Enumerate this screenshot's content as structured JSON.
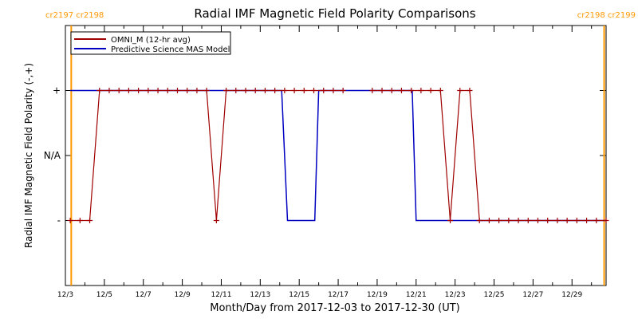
{
  "chart_data": {
    "type": "line",
    "title": "Radial IMF Magnetic Field Polarity Comparisons",
    "xlabel": "Month/Day from 2017-12-03 to 2017-12-30 (UT)",
    "ylabel": "Radial IMF Magnetic Field Polarity (-,+)",
    "x_tick_labels": [
      "12/3",
      "12/5",
      "12/7",
      "12/9",
      "12/11",
      "12/13",
      "12/15",
      "12/17",
      "12/19",
      "12/21",
      "12/23",
      "12/25",
      "12/27",
      "12/29"
    ],
    "y_tick_labels": [
      {
        "label": "+",
        "value": 1
      },
      {
        "label": "N/A",
        "value": 0
      },
      {
        "label": "-",
        "value": -1
      }
    ],
    "xlim": [
      0,
      27.75
    ],
    "ylim": [
      -2,
      2
    ],
    "grid": false,
    "legend_position": "top-left",
    "rotation_labels": {
      "left": "cr2197 cr2198",
      "right": "cr2198 cr2199",
      "color": "#ff9900"
    },
    "rotation_markers_x": [
      0.3,
      27.65
    ],
    "series": [
      {
        "name": "OMNI_M (12-hr avg)",
        "color": "#a00000",
        "marker": "plus",
        "x": [
          0.25,
          0.75,
          1.25,
          1.75,
          2.25,
          2.75,
          3.25,
          3.75,
          4.25,
          4.75,
          5.25,
          5.75,
          6.25,
          6.75,
          7.25,
          7.75,
          8.25,
          8.75,
          9.25,
          9.75,
          10.25,
          10.75,
          11.25,
          11.75,
          12.25,
          12.75,
          13.25,
          13.75,
          14.25,
          15.75,
          16.25,
          16.75,
          17.25,
          17.75,
          18.25,
          18.75,
          19.25,
          19.75,
          20.25,
          20.75,
          21.25,
          21.75,
          22.25,
          22.75,
          23.25,
          23.75,
          24.25,
          24.75,
          25.25,
          25.75,
          26.25,
          26.75,
          27.25,
          27.75
        ],
        "values": [
          -1,
          -1,
          -1,
          1,
          1,
          1,
          1,
          1,
          1,
          1,
          1,
          1,
          1,
          1,
          1,
          -1,
          1,
          1,
          1,
          1,
          1,
          1,
          1,
          1,
          1,
          1,
          1,
          1,
          1,
          1,
          1,
          1,
          1,
          1,
          1,
          1,
          1,
          -1,
          1,
          1,
          -1,
          -1,
          -1,
          -1,
          -1,
          -1,
          -1,
          -1,
          -1,
          -1,
          -1,
          -1,
          -1,
          -1
        ],
        "gap_after_x": [
          14.25
        ]
      },
      {
        "name": "Predictive Science MAS Model",
        "color": "#0000c0",
        "marker": "none",
        "points": [
          [
            0.25,
            1
          ],
          [
            11.1,
            1
          ],
          [
            11.4,
            -1
          ],
          [
            12.8,
            -1
          ],
          [
            13.0,
            1
          ],
          [
            17.8,
            1
          ],
          [
            18.0,
            -1
          ],
          [
            27.75,
            -1
          ]
        ]
      }
    ]
  }
}
